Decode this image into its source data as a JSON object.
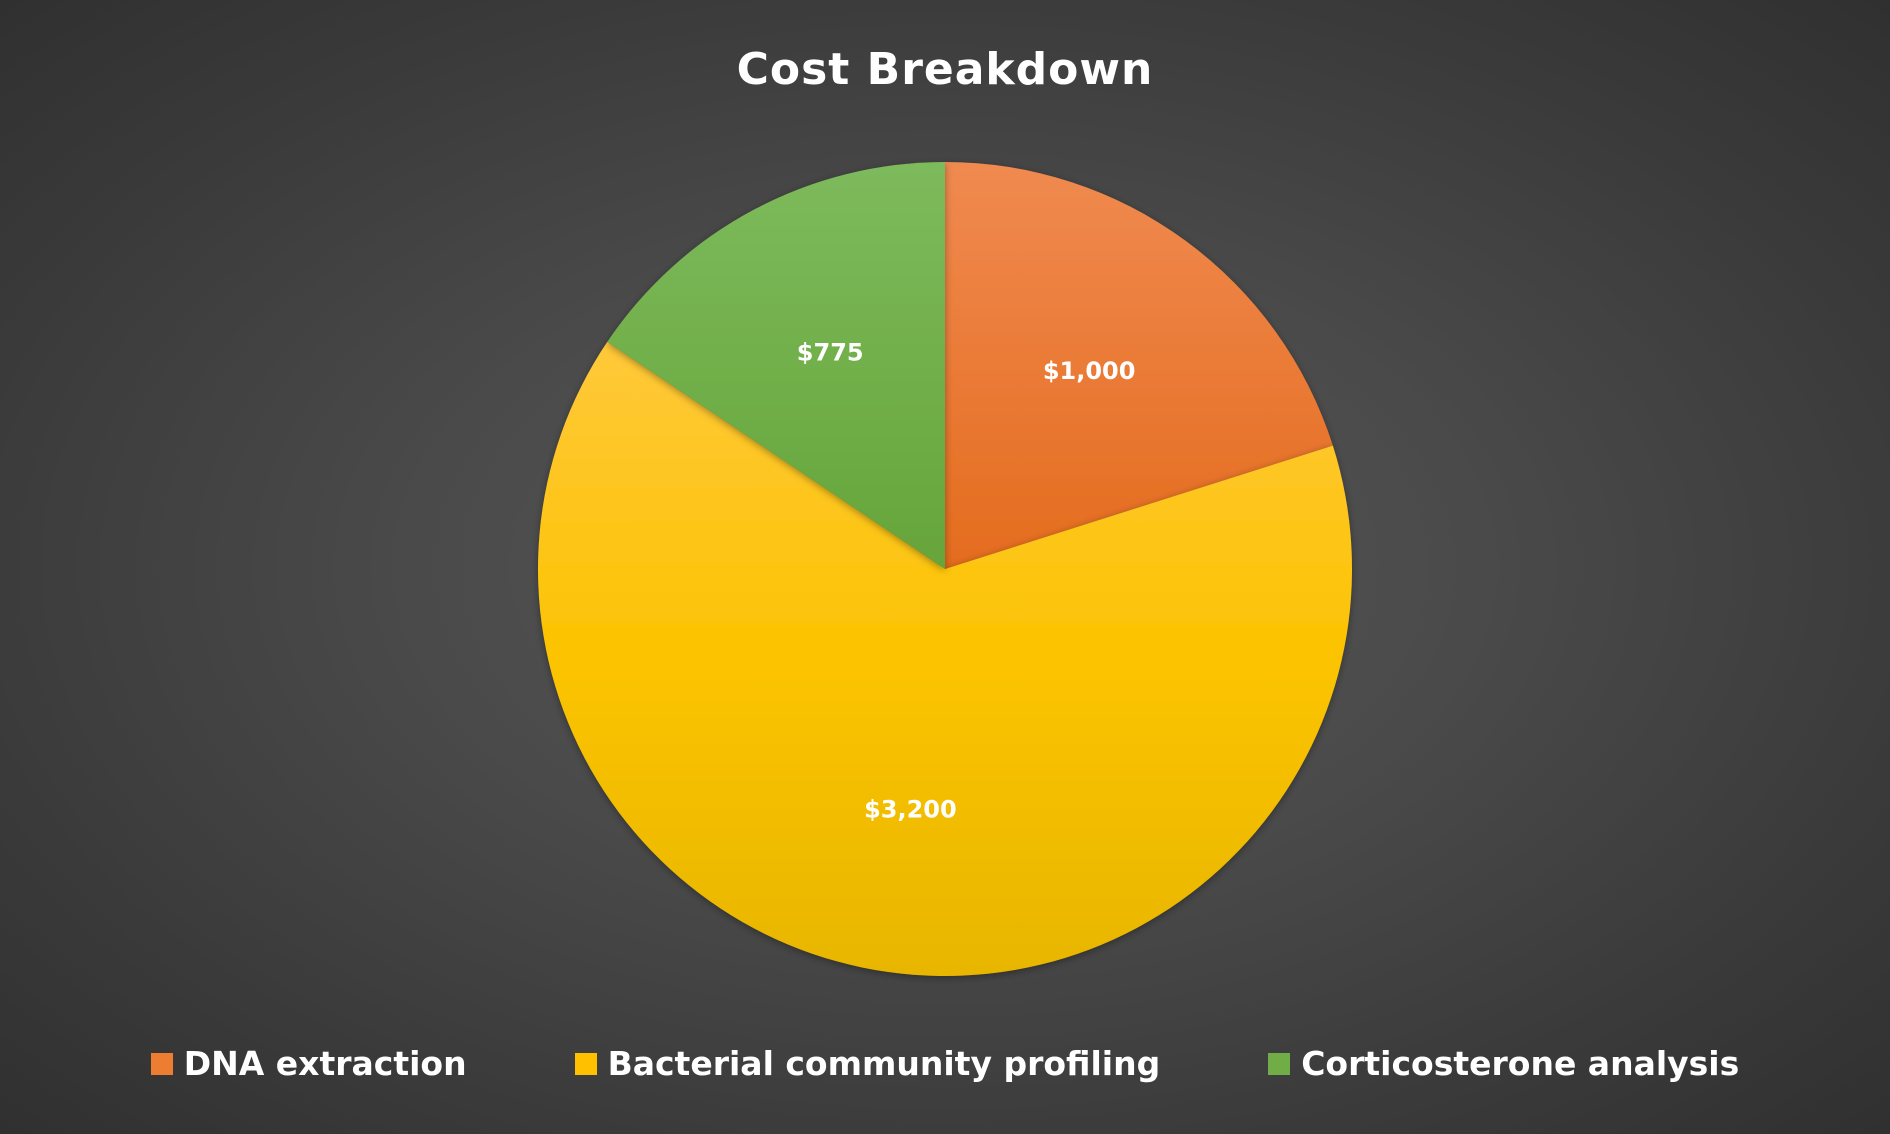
{
  "chart_data": {
    "type": "pie",
    "title": "Cost Breakdown",
    "categories": [
      "DNA extraction",
      "Bacterial community profiling",
      "Corticosterone analysis"
    ],
    "values": [
      1000,
      3200,
      775
    ],
    "data_labels": [
      "$1,000",
      "$3,200",
      "$775"
    ],
    "colors": [
      "#ed7d31",
      "#ffc000",
      "#70ad47"
    ],
    "legend_position": "bottom"
  }
}
